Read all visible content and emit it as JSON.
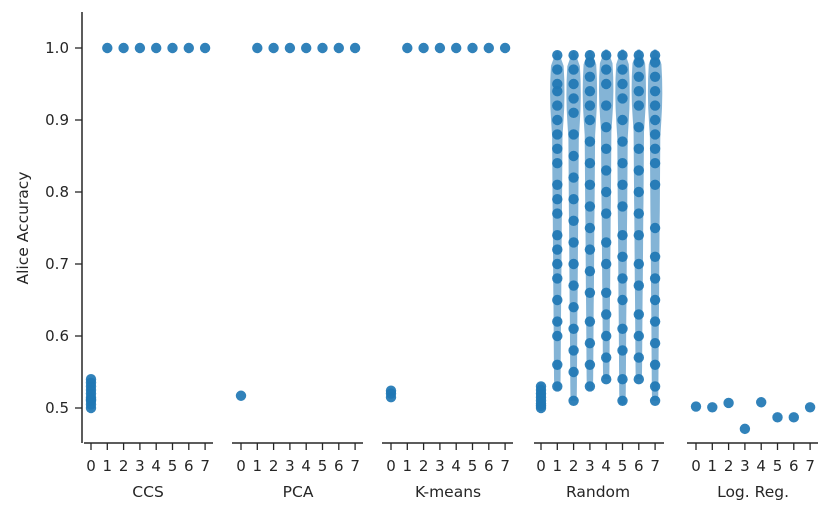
{
  "chart_data": {
    "type": "scatter",
    "subtype": "violin-with-points",
    "ylabel": "Alice Accuracy",
    "ylim": [
      0.47,
      1.05
    ],
    "yticks": [
      0.5,
      0.6,
      0.7,
      0.8,
      0.9,
      1.0
    ],
    "ytick_labels": [
      "0.5",
      "0.6",
      "0.7",
      "0.8",
      "0.9",
      "1.0"
    ],
    "color": "#1f77b4",
    "grid": false,
    "legend": "none",
    "panels": [
      {
        "name": "CCS",
        "categories": [
          "0",
          "1",
          "2",
          "3",
          "4",
          "5",
          "6",
          "7"
        ],
        "kind": "points",
        "values": [
          [
            0.5,
            0.505,
            0.51,
            0.512,
            0.515,
            0.52,
            0.525,
            0.53,
            0.535,
            0.54
          ],
          [
            1.0
          ],
          [
            1.0
          ],
          [
            1.0
          ],
          [
            1.0
          ],
          [
            1.0
          ],
          [
            1.0
          ],
          [
            1.0
          ]
        ]
      },
      {
        "name": "PCA",
        "categories": [
          "0",
          "1",
          "2",
          "3",
          "4",
          "5",
          "6",
          "7"
        ],
        "kind": "points",
        "values": [
          [
            0.517
          ],
          [
            1.0
          ],
          [
            1.0
          ],
          [
            1.0
          ],
          [
            1.0
          ],
          [
            1.0
          ],
          [
            1.0
          ],
          [
            1.0
          ]
        ]
      },
      {
        "name": "K-means",
        "categories": [
          "0",
          "1",
          "2",
          "3",
          "4",
          "5",
          "6",
          "7"
        ],
        "kind": "points",
        "values": [
          [
            0.515,
            0.52,
            0.524
          ],
          [
            1.0
          ],
          [
            1.0
          ],
          [
            1.0
          ],
          [
            1.0
          ],
          [
            1.0
          ],
          [
            1.0
          ],
          [
            1.0
          ]
        ]
      },
      {
        "name": "Random",
        "categories": [
          "0",
          "1",
          "2",
          "3",
          "4",
          "5",
          "6",
          "7"
        ],
        "kind": "violin",
        "ranges": [
          [
            0.5,
            0.535
          ],
          [
            0.525,
            0.995
          ],
          [
            0.51,
            0.995
          ],
          [
            0.525,
            0.997
          ],
          [
            0.54,
            0.998
          ],
          [
            0.505,
            0.998
          ],
          [
            0.54,
            0.998
          ],
          [
            0.51,
            0.998
          ]
        ],
        "values": [
          [
            0.5,
            0.503,
            0.506,
            0.51,
            0.515,
            0.52,
            0.525,
            0.53
          ],
          [
            0.53,
            0.56,
            0.6,
            0.62,
            0.65,
            0.68,
            0.7,
            0.72,
            0.74,
            0.77,
            0.79,
            0.81,
            0.84,
            0.86,
            0.88,
            0.9,
            0.92,
            0.94,
            0.95,
            0.97,
            0.99
          ],
          [
            0.51,
            0.55,
            0.58,
            0.61,
            0.64,
            0.67,
            0.7,
            0.73,
            0.76,
            0.79,
            0.82,
            0.85,
            0.88,
            0.91,
            0.93,
            0.95,
            0.97,
            0.99
          ],
          [
            0.53,
            0.56,
            0.59,
            0.62,
            0.66,
            0.69,
            0.72,
            0.75,
            0.78,
            0.81,
            0.84,
            0.87,
            0.9,
            0.92,
            0.94,
            0.96,
            0.98,
            0.99
          ],
          [
            0.54,
            0.57,
            0.6,
            0.63,
            0.66,
            0.7,
            0.73,
            0.77,
            0.8,
            0.83,
            0.86,
            0.89,
            0.92,
            0.95,
            0.97,
            0.99
          ],
          [
            0.51,
            0.54,
            0.58,
            0.61,
            0.65,
            0.68,
            0.71,
            0.74,
            0.78,
            0.81,
            0.84,
            0.87,
            0.9,
            0.93,
            0.95,
            0.97,
            0.99
          ],
          [
            0.54,
            0.57,
            0.6,
            0.63,
            0.67,
            0.7,
            0.74,
            0.77,
            0.8,
            0.83,
            0.86,
            0.89,
            0.92,
            0.94,
            0.96,
            0.98,
            0.99
          ],
          [
            0.51,
            0.53,
            0.56,
            0.59,
            0.62,
            0.65,
            0.68,
            0.71,
            0.75,
            0.81,
            0.84,
            0.86,
            0.88,
            0.9,
            0.92,
            0.94,
            0.96,
            0.98,
            0.99
          ]
        ]
      },
      {
        "name": "Log. Reg.",
        "categories": [
          "0",
          "1",
          "2",
          "3",
          "4",
          "5",
          "6",
          "7"
        ],
        "kind": "points",
        "values": [
          [
            0.502
          ],
          [
            0.501
          ],
          [
            0.507
          ],
          [
            0.471
          ],
          [
            0.508
          ],
          [
            0.487
          ],
          [
            0.487
          ],
          [
            0.501
          ]
        ]
      }
    ]
  }
}
